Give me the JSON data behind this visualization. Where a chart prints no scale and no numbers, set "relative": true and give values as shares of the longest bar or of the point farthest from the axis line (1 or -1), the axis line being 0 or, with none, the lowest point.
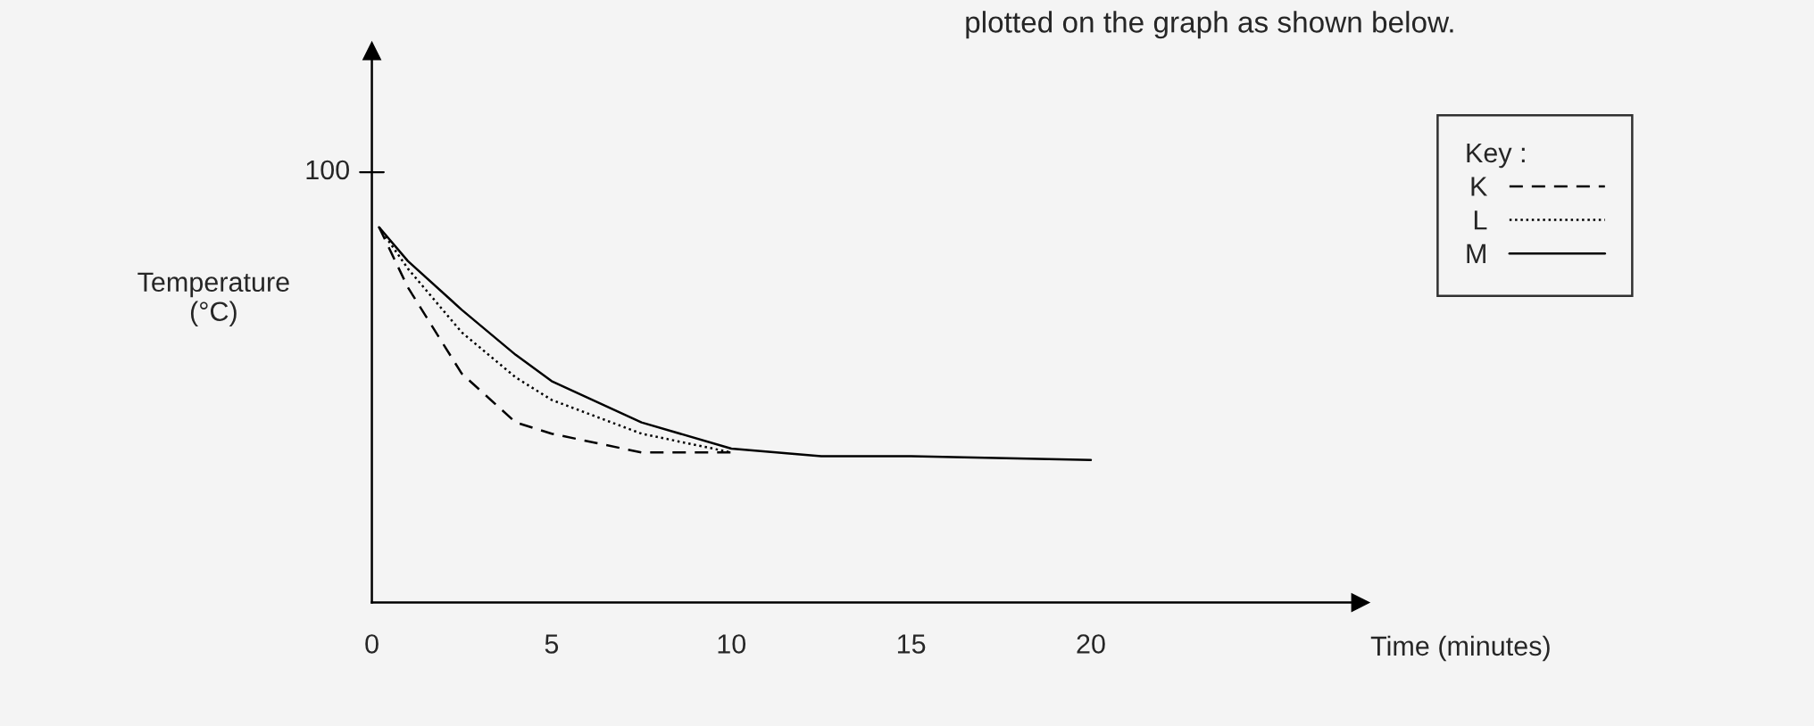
{
  "chart_data": {
    "type": "line",
    "title": "plotted on the graph as shown below.",
    "xlabel": "Time (minutes)",
    "ylabel": "Temperature\n(°C)",
    "legend_title": "Key :",
    "x": [
      0.2,
      1,
      2.5,
      4,
      5,
      7.5,
      10,
      12.5,
      15,
      20
    ],
    "series": [
      {
        "name": "K",
        "color": "#000000",
        "line_style": "dashed",
        "values": [
          1,
          0.84,
          0.61,
          0.48,
          0.45,
          0.4,
          0.4,
          null,
          null,
          null
        ]
      },
      {
        "name": "L",
        "color": "#000000",
        "line_style": "dotted",
        "values": [
          1,
          0.89,
          0.72,
          0.6,
          0.54,
          0.45,
          0.4,
          null,
          null,
          null
        ]
      },
      {
        "name": "M",
        "color": "#000000",
        "line_style": "solid",
        "values": [
          1,
          0.91,
          0.78,
          0.66,
          0.59,
          0.48,
          0.41,
          0.39,
          0.39,
          0.38
        ]
      }
    ],
    "relative": true,
    "annotations": [
      "100"
    ],
    "xlim": [
      0,
      27.5
    ],
    "xticks": [
      0,
      5,
      10,
      15,
      20
    ],
    "grid": false,
    "legend": "right",
    "marker": "none"
  }
}
